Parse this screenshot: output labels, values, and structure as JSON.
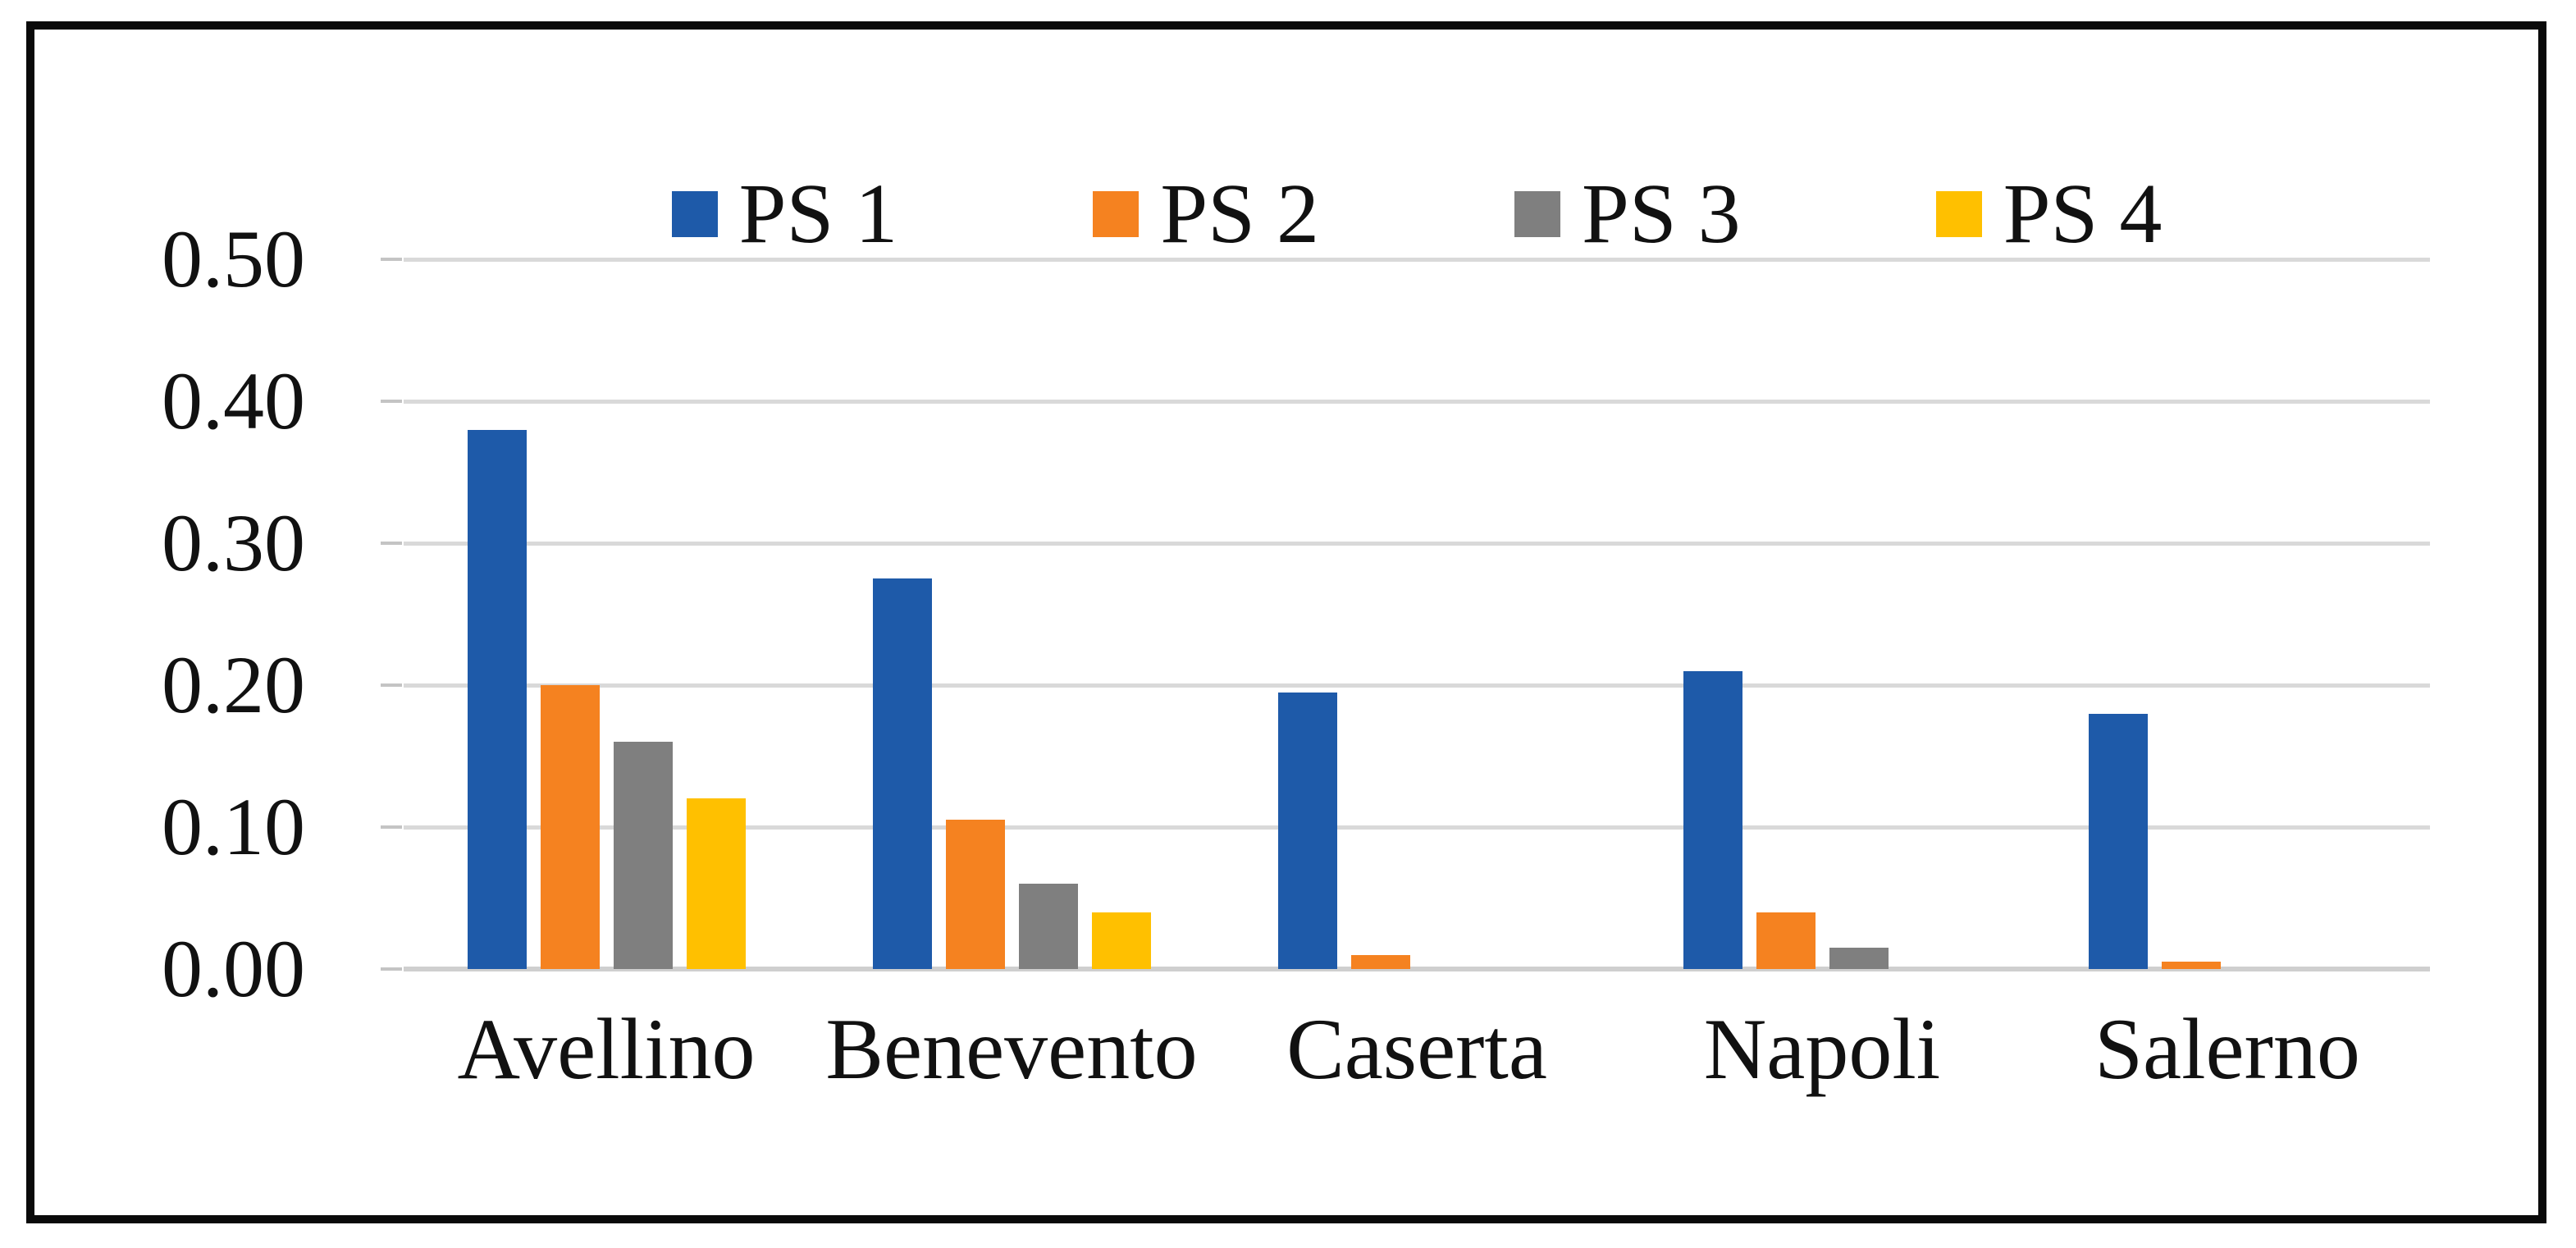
{
  "chart_data": {
    "type": "bar",
    "title": "",
    "xlabel": "",
    "ylabel": "",
    "categories": [
      "Avellino",
      "Benevento",
      "Caserta",
      "Napoli",
      "Salerno"
    ],
    "series": [
      {
        "name": "PS 1",
        "color": "#1e5aa9",
        "values": [
          0.38,
          0.275,
          0.195,
          0.21,
          0.18
        ]
      },
      {
        "name": "PS 2",
        "color": "#f58220",
        "values": [
          0.2,
          0.105,
          0.01,
          0.04,
          0.005
        ]
      },
      {
        "name": "PS 3",
        "color": "#7f7f7f",
        "values": [
          0.16,
          0.06,
          0.0,
          0.015,
          0.0
        ]
      },
      {
        "name": "PS 4",
        "color": "#ffc000",
        "values": [
          0.12,
          0.04,
          0.0,
          0.0,
          0.0
        ]
      }
    ],
    "ylim": [
      0.0,
      0.5
    ],
    "ytick_step": 0.1,
    "ytick_labels_top_to_bottom": [
      "0.50",
      "0.40",
      "0.30",
      "0.20",
      "0.10",
      "0.00"
    ],
    "grid": true,
    "legend_position": "top",
    "colors": {
      "grid": "#d9d9d9",
      "axis_baseline": "#cfcfcf",
      "tick": "#c4c4c4",
      "text": "#111111",
      "frame_border": "#0a0a0a",
      "background": "#ffffff"
    }
  }
}
